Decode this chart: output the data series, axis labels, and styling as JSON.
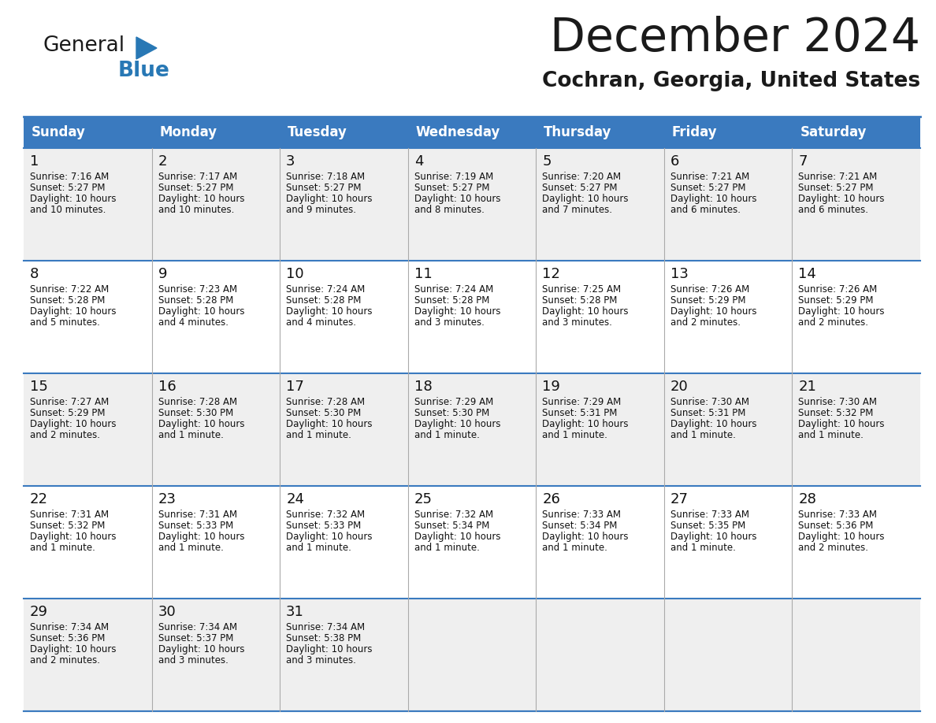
{
  "title": "December 2024",
  "subtitle": "Cochran, Georgia, United States",
  "days_of_week": [
    "Sunday",
    "Monday",
    "Tuesday",
    "Wednesday",
    "Thursday",
    "Friday",
    "Saturday"
  ],
  "header_bg": "#3a7abf",
  "header_text": "#ffffff",
  "row_bg_odd": "#efefef",
  "row_bg_even": "#ffffff",
  "cell_text_color": "#111111",
  "border_color": "#3a7abf",
  "title_color": "#1a1a1a",
  "subtitle_color": "#1a1a1a",
  "logo_black": "#1a1a1a",
  "logo_blue": "#2878b5",
  "calendar_data": [
    [
      {
        "day": 1,
        "sunrise": "7:16 AM",
        "sunset": "5:27 PM",
        "daylight": "10 hours and 10 minutes."
      },
      {
        "day": 2,
        "sunrise": "7:17 AM",
        "sunset": "5:27 PM",
        "daylight": "10 hours and 10 minutes."
      },
      {
        "day": 3,
        "sunrise": "7:18 AM",
        "sunset": "5:27 PM",
        "daylight": "10 hours and 9 minutes."
      },
      {
        "day": 4,
        "sunrise": "7:19 AM",
        "sunset": "5:27 PM",
        "daylight": "10 hours and 8 minutes."
      },
      {
        "day": 5,
        "sunrise": "7:20 AM",
        "sunset": "5:27 PM",
        "daylight": "10 hours and 7 minutes."
      },
      {
        "day": 6,
        "sunrise": "7:21 AM",
        "sunset": "5:27 PM",
        "daylight": "10 hours and 6 minutes."
      },
      {
        "day": 7,
        "sunrise": "7:21 AM",
        "sunset": "5:27 PM",
        "daylight": "10 hours and 6 minutes."
      }
    ],
    [
      {
        "day": 8,
        "sunrise": "7:22 AM",
        "sunset": "5:28 PM",
        "daylight": "10 hours and 5 minutes."
      },
      {
        "day": 9,
        "sunrise": "7:23 AM",
        "sunset": "5:28 PM",
        "daylight": "10 hours and 4 minutes."
      },
      {
        "day": 10,
        "sunrise": "7:24 AM",
        "sunset": "5:28 PM",
        "daylight": "10 hours and 4 minutes."
      },
      {
        "day": 11,
        "sunrise": "7:24 AM",
        "sunset": "5:28 PM",
        "daylight": "10 hours and 3 minutes."
      },
      {
        "day": 12,
        "sunrise": "7:25 AM",
        "sunset": "5:28 PM",
        "daylight": "10 hours and 3 minutes."
      },
      {
        "day": 13,
        "sunrise": "7:26 AM",
        "sunset": "5:29 PM",
        "daylight": "10 hours and 2 minutes."
      },
      {
        "day": 14,
        "sunrise": "7:26 AM",
        "sunset": "5:29 PM",
        "daylight": "10 hours and 2 minutes."
      }
    ],
    [
      {
        "day": 15,
        "sunrise": "7:27 AM",
        "sunset": "5:29 PM",
        "daylight": "10 hours and 2 minutes."
      },
      {
        "day": 16,
        "sunrise": "7:28 AM",
        "sunset": "5:30 PM",
        "daylight": "10 hours and 1 minute."
      },
      {
        "day": 17,
        "sunrise": "7:28 AM",
        "sunset": "5:30 PM",
        "daylight": "10 hours and 1 minute."
      },
      {
        "day": 18,
        "sunrise": "7:29 AM",
        "sunset": "5:30 PM",
        "daylight": "10 hours and 1 minute."
      },
      {
        "day": 19,
        "sunrise": "7:29 AM",
        "sunset": "5:31 PM",
        "daylight": "10 hours and 1 minute."
      },
      {
        "day": 20,
        "sunrise": "7:30 AM",
        "sunset": "5:31 PM",
        "daylight": "10 hours and 1 minute."
      },
      {
        "day": 21,
        "sunrise": "7:30 AM",
        "sunset": "5:32 PM",
        "daylight": "10 hours and 1 minute."
      }
    ],
    [
      {
        "day": 22,
        "sunrise": "7:31 AM",
        "sunset": "5:32 PM",
        "daylight": "10 hours and 1 minute."
      },
      {
        "day": 23,
        "sunrise": "7:31 AM",
        "sunset": "5:33 PM",
        "daylight": "10 hours and 1 minute."
      },
      {
        "day": 24,
        "sunrise": "7:32 AM",
        "sunset": "5:33 PM",
        "daylight": "10 hours and 1 minute."
      },
      {
        "day": 25,
        "sunrise": "7:32 AM",
        "sunset": "5:34 PM",
        "daylight": "10 hours and 1 minute."
      },
      {
        "day": 26,
        "sunrise": "7:33 AM",
        "sunset": "5:34 PM",
        "daylight": "10 hours and 1 minute."
      },
      {
        "day": 27,
        "sunrise": "7:33 AM",
        "sunset": "5:35 PM",
        "daylight": "10 hours and 1 minute."
      },
      {
        "day": 28,
        "sunrise": "7:33 AM",
        "sunset": "5:36 PM",
        "daylight": "10 hours and 2 minutes."
      }
    ],
    [
      {
        "day": 29,
        "sunrise": "7:34 AM",
        "sunset": "5:36 PM",
        "daylight": "10 hours and 2 minutes."
      },
      {
        "day": 30,
        "sunrise": "7:34 AM",
        "sunset": "5:37 PM",
        "daylight": "10 hours and 3 minutes."
      },
      {
        "day": 31,
        "sunrise": "7:34 AM",
        "sunset": "5:38 PM",
        "daylight": "10 hours and 3 minutes."
      },
      null,
      null,
      null,
      null
    ]
  ]
}
